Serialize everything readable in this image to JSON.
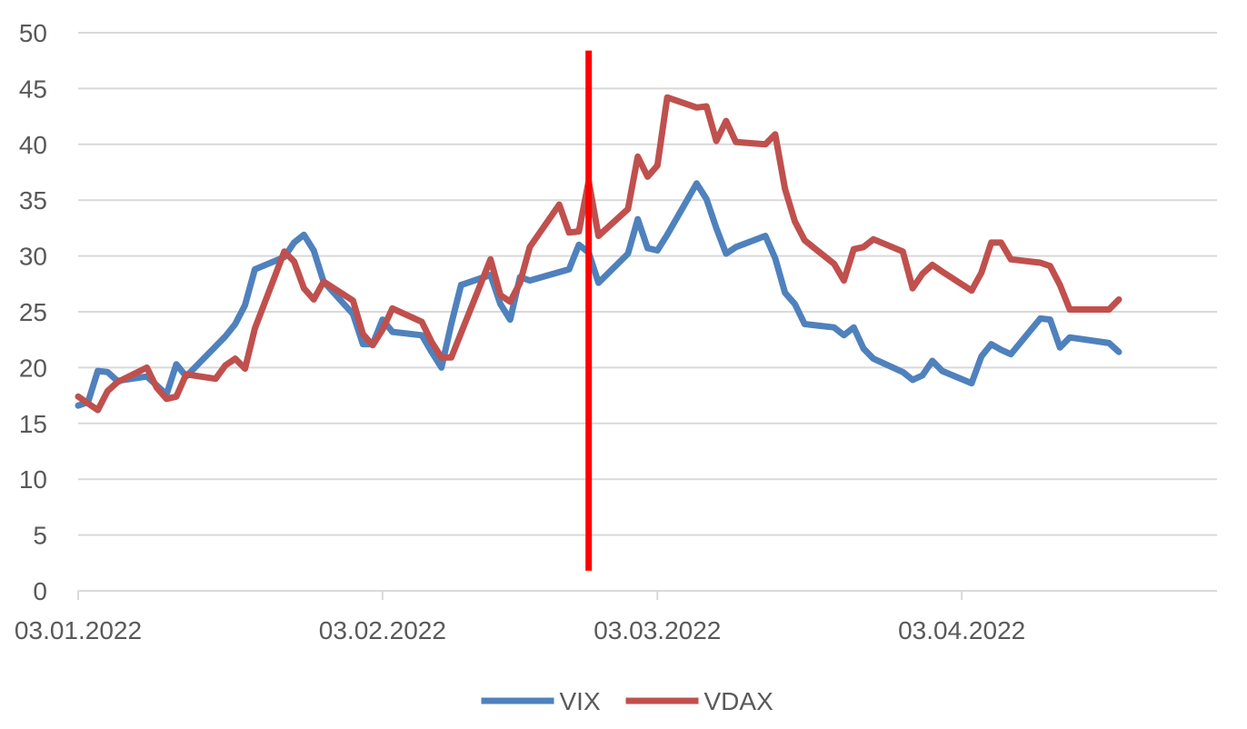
{
  "chart_data": {
    "type": "line",
    "title": "",
    "xlabel": "",
    "ylabel": "",
    "ylim": [
      0,
      50
    ],
    "yticks": [
      "0",
      "5",
      "10",
      "15",
      "20",
      "25",
      "30",
      "35",
      "40",
      "45",
      "50"
    ],
    "x_axis": {
      "type": "date",
      "start": "2022-01-03",
      "end": "2022-04-29",
      "tick_labels": [
        {
          "date": "2022-01-03",
          "label": "03.01.2022"
        },
        {
          "date": "2022-02-03",
          "label": "03.02.2022"
        },
        {
          "date": "2022-03-03",
          "label": "03.03.2022"
        },
        {
          "date": "2022-04-03",
          "label": "03.04.2022"
        }
      ]
    },
    "grid": "horizontal",
    "legend": "bottom",
    "marker_line": {
      "date": "2022-02-24",
      "color": "#ff0000",
      "y_range": [
        1.8,
        48.4
      ]
    },
    "series": [
      {
        "name": "VIX",
        "color": "#4f81bd",
        "points": [
          [
            "2022-01-03",
            16.6
          ],
          [
            "2022-01-04",
            16.9
          ],
          [
            "2022-01-05",
            19.7
          ],
          [
            "2022-01-06",
            19.6
          ],
          [
            "2022-01-07",
            18.8
          ],
          [
            "2022-01-10",
            19.2
          ],
          [
            "2022-01-11",
            18.4
          ],
          [
            "2022-01-12",
            17.6
          ],
          [
            "2022-01-13",
            20.3
          ],
          [
            "2022-01-14",
            19.2
          ],
          [
            "2022-01-18",
            22.8
          ],
          [
            "2022-01-19",
            23.9
          ],
          [
            "2022-01-20",
            25.6
          ],
          [
            "2022-01-21",
            28.8
          ],
          [
            "2022-01-24",
            29.9
          ],
          [
            "2022-01-25",
            31.2
          ],
          [
            "2022-01-26",
            31.9
          ],
          [
            "2022-01-27",
            30.5
          ],
          [
            "2022-01-28",
            27.7
          ],
          [
            "2022-01-31",
            24.8
          ],
          [
            "2022-02-01",
            22.1
          ],
          [
            "2022-02-02",
            22.1
          ],
          [
            "2022-02-03",
            24.3
          ],
          [
            "2022-02-04",
            23.2
          ],
          [
            "2022-02-07",
            22.9
          ],
          [
            "2022-02-08",
            21.4
          ],
          [
            "2022-02-09",
            20.0
          ],
          [
            "2022-02-10",
            23.9
          ],
          [
            "2022-02-11",
            27.4
          ],
          [
            "2022-02-14",
            28.3
          ],
          [
            "2022-02-15",
            25.7
          ],
          [
            "2022-02-16",
            24.3
          ],
          [
            "2022-02-17",
            28.1
          ],
          [
            "2022-02-18",
            27.8
          ],
          [
            "2022-02-22",
            28.8
          ],
          [
            "2022-02-23",
            31.0
          ],
          [
            "2022-02-24",
            30.3
          ],
          [
            "2022-02-25",
            27.6
          ],
          [
            "2022-02-28",
            30.2
          ],
          [
            "2022-03-01",
            33.3
          ],
          [
            "2022-03-02",
            30.7
          ],
          [
            "2022-03-03",
            30.5
          ],
          [
            "2022-03-04",
            31.9
          ],
          [
            "2022-03-07",
            36.5
          ],
          [
            "2022-03-08",
            35.1
          ],
          [
            "2022-03-09",
            32.5
          ],
          [
            "2022-03-10",
            30.2
          ],
          [
            "2022-03-11",
            30.8
          ],
          [
            "2022-03-14",
            31.8
          ],
          [
            "2022-03-15",
            29.8
          ],
          [
            "2022-03-16",
            26.7
          ],
          [
            "2022-03-17",
            25.7
          ],
          [
            "2022-03-18",
            23.9
          ],
          [
            "2022-03-21",
            23.6
          ],
          [
            "2022-03-22",
            22.9
          ],
          [
            "2022-03-23",
            23.6
          ],
          [
            "2022-03-24",
            21.7
          ],
          [
            "2022-03-25",
            20.8
          ],
          [
            "2022-03-28",
            19.6
          ],
          [
            "2022-03-29",
            18.9
          ],
          [
            "2022-03-30",
            19.3
          ],
          [
            "2022-03-31",
            20.6
          ],
          [
            "2022-04-01",
            19.7
          ],
          [
            "2022-04-04",
            18.6
          ],
          [
            "2022-04-05",
            21.0
          ],
          [
            "2022-04-06",
            22.1
          ],
          [
            "2022-04-07",
            21.6
          ],
          [
            "2022-04-08",
            21.2
          ],
          [
            "2022-04-11",
            24.4
          ],
          [
            "2022-04-12",
            24.3
          ],
          [
            "2022-04-13",
            21.8
          ],
          [
            "2022-04-14",
            22.7
          ],
          [
            "2022-04-18",
            22.2
          ],
          [
            "2022-04-19",
            21.4
          ]
        ]
      },
      {
        "name": "VDAX",
        "color": "#c0504d",
        "points": [
          [
            "2022-01-03",
            17.4
          ],
          [
            "2022-01-04",
            16.8
          ],
          [
            "2022-01-05",
            16.2
          ],
          [
            "2022-01-06",
            17.9
          ],
          [
            "2022-01-07",
            18.7
          ],
          [
            "2022-01-10",
            20.0
          ],
          [
            "2022-01-11",
            18.2
          ],
          [
            "2022-01-12",
            17.2
          ],
          [
            "2022-01-13",
            17.4
          ],
          [
            "2022-01-14",
            19.4
          ],
          [
            "2022-01-17",
            19.0
          ],
          [
            "2022-01-18",
            20.2
          ],
          [
            "2022-01-19",
            20.8
          ],
          [
            "2022-01-20",
            19.9
          ],
          [
            "2022-01-21",
            23.5
          ],
          [
            "2022-01-24",
            30.4
          ],
          [
            "2022-01-25",
            29.5
          ],
          [
            "2022-01-26",
            27.1
          ],
          [
            "2022-01-27",
            26.1
          ],
          [
            "2022-01-28",
            27.7
          ],
          [
            "2022-01-31",
            26.0
          ],
          [
            "2022-02-01",
            23.0
          ],
          [
            "2022-02-02",
            22.0
          ],
          [
            "2022-02-03",
            23.4
          ],
          [
            "2022-02-04",
            25.3
          ],
          [
            "2022-02-07",
            24.1
          ],
          [
            "2022-02-08",
            22.3
          ],
          [
            "2022-02-09",
            20.9
          ],
          [
            "2022-02-10",
            20.9
          ],
          [
            "2022-02-14",
            29.7
          ],
          [
            "2022-02-15",
            26.5
          ],
          [
            "2022-02-16",
            25.9
          ],
          [
            "2022-02-17",
            27.6
          ],
          [
            "2022-02-18",
            30.8
          ],
          [
            "2022-02-21",
            34.6
          ],
          [
            "2022-02-22",
            32.1
          ],
          [
            "2022-02-23",
            32.2
          ],
          [
            "2022-02-24",
            36.7
          ],
          [
            "2022-02-25",
            31.8
          ],
          [
            "2022-02-28",
            34.2
          ],
          [
            "2022-03-01",
            38.9
          ],
          [
            "2022-03-02",
            37.1
          ],
          [
            "2022-03-03",
            38.1
          ],
          [
            "2022-03-04",
            44.2
          ],
          [
            "2022-03-07",
            43.3
          ],
          [
            "2022-03-08",
            43.4
          ],
          [
            "2022-03-09",
            40.3
          ],
          [
            "2022-03-10",
            42.1
          ],
          [
            "2022-03-11",
            40.2
          ],
          [
            "2022-03-14",
            40.0
          ],
          [
            "2022-03-15",
            40.9
          ],
          [
            "2022-03-16",
            36.0
          ],
          [
            "2022-03-17",
            33.1
          ],
          [
            "2022-03-18",
            31.4
          ],
          [
            "2022-03-21",
            29.3
          ],
          [
            "2022-03-22",
            27.8
          ],
          [
            "2022-03-23",
            30.6
          ],
          [
            "2022-03-24",
            30.8
          ],
          [
            "2022-03-25",
            31.5
          ],
          [
            "2022-03-28",
            30.4
          ],
          [
            "2022-03-29",
            27.1
          ],
          [
            "2022-03-30",
            28.4
          ],
          [
            "2022-03-31",
            29.2
          ],
          [
            "2022-04-01",
            28.6
          ],
          [
            "2022-04-04",
            26.9
          ],
          [
            "2022-04-05",
            28.5
          ],
          [
            "2022-04-06",
            31.2
          ],
          [
            "2022-04-07",
            31.2
          ],
          [
            "2022-04-08",
            29.7
          ],
          [
            "2022-04-11",
            29.4
          ],
          [
            "2022-04-12",
            29.1
          ],
          [
            "2022-04-13",
            27.4
          ],
          [
            "2022-04-14",
            25.2
          ],
          [
            "2022-04-18",
            25.2
          ],
          [
            "2022-04-19",
            26.1
          ]
        ]
      }
    ]
  }
}
